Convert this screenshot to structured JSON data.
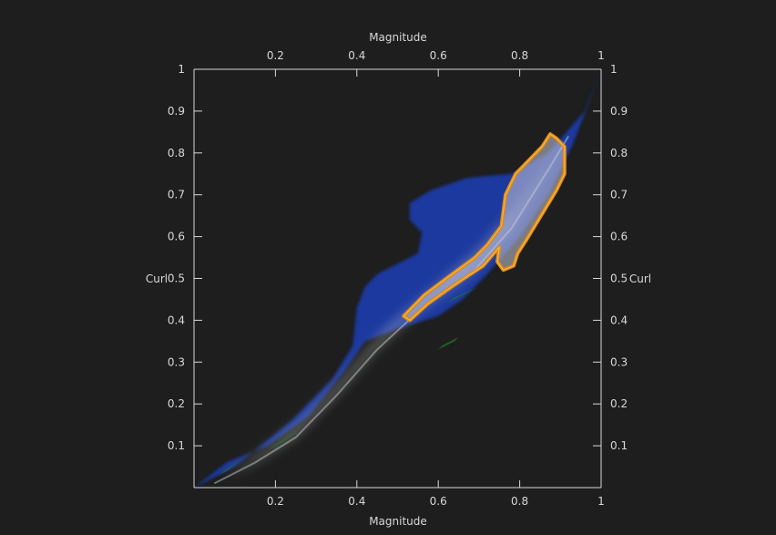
{
  "chart_data": {
    "type": "scatter",
    "style": "density-volume",
    "xlabel": "Magnitude",
    "ylabel": "Curl",
    "xlim": [
      0,
      1
    ],
    "ylim": [
      0,
      1
    ],
    "x_ticks": [
      "0.2",
      "0.4",
      "0.6",
      "0.8",
      "1"
    ],
    "y_ticks": [
      "0.1",
      "0.2",
      "0.3",
      "0.4",
      "0.5",
      "0.6",
      "0.7",
      "0.8",
      "0.9",
      "1"
    ],
    "x_tick_values": [
      0.2,
      0.4,
      0.6,
      0.8,
      1.0
    ],
    "y_tick_values": [
      0.1,
      0.2,
      0.3,
      0.4,
      0.5,
      0.6,
      0.7,
      0.8,
      0.9,
      1.0
    ],
    "grid": false,
    "legend": "none",
    "colors": {
      "background": "#1e1e1e",
      "axis": "#d8d8d8",
      "density_low": "#1d3aa6",
      "density_high": "#d8dcdc",
      "density_edge": "#1e7a1e",
      "selection": "#e08a10"
    },
    "density_region": [
      [
        0.0,
        0.0
      ],
      [
        0.08,
        0.06
      ],
      [
        0.18,
        0.1
      ],
      [
        0.28,
        0.17
      ],
      [
        0.37,
        0.28
      ],
      [
        0.42,
        0.35
      ],
      [
        0.5,
        0.38
      ],
      [
        0.6,
        0.41
      ],
      [
        0.66,
        0.45
      ],
      [
        0.72,
        0.51
      ],
      [
        0.8,
        0.6
      ],
      [
        0.87,
        0.7
      ],
      [
        0.93,
        0.82
      ],
      [
        0.97,
        0.92
      ],
      [
        1.0,
        1.0
      ],
      [
        0.96,
        0.9
      ],
      [
        0.87,
        0.8
      ],
      [
        0.78,
        0.75
      ],
      [
        0.67,
        0.74
      ],
      [
        0.58,
        0.71
      ],
      [
        0.53,
        0.68
      ],
      [
        0.53,
        0.64
      ],
      [
        0.56,
        0.61
      ],
      [
        0.55,
        0.56
      ],
      [
        0.51,
        0.54
      ],
      [
        0.45,
        0.51
      ],
      [
        0.42,
        0.48
      ],
      [
        0.4,
        0.43
      ],
      [
        0.39,
        0.34
      ],
      [
        0.34,
        0.26
      ],
      [
        0.24,
        0.16
      ],
      [
        0.1,
        0.05
      ],
      [
        0.0,
        0.0
      ]
    ],
    "dense_core": [
      [
        0.05,
        0.01
      ],
      [
        0.15,
        0.06
      ],
      [
        0.25,
        0.12
      ],
      [
        0.35,
        0.22
      ],
      [
        0.45,
        0.33
      ],
      [
        0.55,
        0.42
      ],
      [
        0.68,
        0.51
      ],
      [
        0.78,
        0.62
      ],
      [
        0.87,
        0.76
      ],
      [
        0.92,
        0.84
      ],
      [
        0.89,
        0.8
      ],
      [
        0.8,
        0.68
      ],
      [
        0.7,
        0.57
      ],
      [
        0.58,
        0.47
      ],
      [
        0.47,
        0.38
      ],
      [
        0.37,
        0.27
      ],
      [
        0.27,
        0.17
      ],
      [
        0.17,
        0.09
      ],
      [
        0.07,
        0.02
      ]
    ],
    "selection_polygon": [
      [
        0.515,
        0.41
      ],
      [
        0.565,
        0.46
      ],
      [
        0.62,
        0.5
      ],
      [
        0.69,
        0.55
      ],
      [
        0.72,
        0.58
      ],
      [
        0.755,
        0.625
      ],
      [
        0.765,
        0.7
      ],
      [
        0.79,
        0.75
      ],
      [
        0.855,
        0.815
      ],
      [
        0.875,
        0.845
      ],
      [
        0.89,
        0.835
      ],
      [
        0.91,
        0.815
      ],
      [
        0.91,
        0.75
      ],
      [
        0.89,
        0.71
      ],
      [
        0.815,
        0.59
      ],
      [
        0.795,
        0.56
      ],
      [
        0.785,
        0.53
      ],
      [
        0.76,
        0.52
      ],
      [
        0.745,
        0.54
      ],
      [
        0.75,
        0.575
      ],
      [
        0.71,
        0.53
      ],
      [
        0.64,
        0.485
      ],
      [
        0.575,
        0.44
      ],
      [
        0.53,
        0.4
      ]
    ]
  }
}
